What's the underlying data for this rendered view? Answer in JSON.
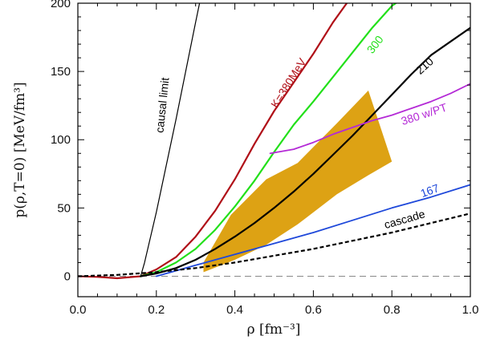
{
  "chart_data": {
    "type": "line",
    "xlabel": "ρ  [fm⁻³]",
    "ylabel": "p(ρ,T=0)  [MeV/fm³]",
    "xlim": [
      0,
      1.0
    ],
    "ylim": [
      -15,
      200
    ],
    "x_ticks": [
      0.0,
      0.2,
      0.4,
      0.6,
      0.8,
      1.0
    ],
    "x_tick_labels": [
      "0.0",
      "0.2",
      "0.4",
      "0.6",
      "0.8",
      "1.0"
    ],
    "y_ticks": [
      0,
      50,
      100,
      150,
      200
    ],
    "y_tick_labels": [
      "0",
      "50",
      "100",
      "150",
      "200"
    ],
    "grid": false,
    "band": {
      "color": "#dda214",
      "polygon": [
        [
          0.32,
          10
        ],
        [
          0.39,
          45
        ],
        [
          0.48,
          71
        ],
        [
          0.56,
          83
        ],
        [
          0.66,
          112
        ],
        [
          0.74,
          136
        ],
        [
          0.8,
          84
        ],
        [
          0.74,
          74
        ],
        [
          0.66,
          60
        ],
        [
          0.56,
          38
        ],
        [
          0.48,
          23
        ],
        [
          0.4,
          12
        ],
        [
          0.32,
          3
        ]
      ]
    },
    "series": [
      {
        "name": "causal limit",
        "color": "#000000",
        "width": 1.2,
        "dash": "",
        "x": [
          0.16,
          0.17,
          0.2,
          0.25,
          0.3,
          0.31
        ],
        "y": [
          0,
          10,
          47,
          115,
          186,
          200
        ]
      },
      {
        "name": "K=380MeV",
        "color": "#b01018",
        "width": 2.2,
        "dash": "",
        "x": [
          0.0,
          0.05,
          0.1,
          0.16,
          0.2,
          0.25,
          0.3,
          0.35,
          0.4,
          0.45,
          0.5,
          0.55,
          0.6,
          0.65,
          0.685
        ],
        "y": [
          0,
          -0.5,
          -1.5,
          0,
          5,
          14,
          29,
          48,
          71,
          97,
          121,
          142,
          163,
          186,
          200
        ]
      },
      {
        "name": "300",
        "color": "#22e01a",
        "width": 2.2,
        "dash": "",
        "x": [
          0.16,
          0.2,
          0.25,
          0.3,
          0.35,
          0.4,
          0.45,
          0.5,
          0.55,
          0.6,
          0.65,
          0.7,
          0.75,
          0.8,
          0.81
        ],
        "y": [
          0,
          3,
          10,
          20,
          34,
          51,
          70,
          91,
          111,
          128,
          146,
          164,
          182,
          198,
          200
        ]
      },
      {
        "name": "210",
        "color": "#000000",
        "width": 2.2,
        "dash": "",
        "x": [
          0.16,
          0.2,
          0.25,
          0.3,
          0.35,
          0.4,
          0.45,
          0.5,
          0.55,
          0.6,
          0.65,
          0.7,
          0.75,
          0.8,
          0.85,
          0.9,
          0.95,
          1.0
        ],
        "y": [
          0,
          2,
          6,
          12,
          20,
          29,
          39,
          50,
          62,
          75,
          89,
          103,
          118,
          133,
          148,
          162,
          172,
          182
        ]
      },
      {
        "name": "380 w/PT",
        "color": "#b42ad6",
        "width": 1.8,
        "dash": "",
        "x": [
          0.49,
          0.55,
          0.6,
          0.65,
          0.7,
          0.75,
          0.8,
          0.85,
          0.9,
          0.95,
          1.0
        ],
        "y": [
          90,
          93,
          98,
          104,
          109,
          114,
          118,
          123,
          128,
          134,
          141
        ]
      },
      {
        "name": "167",
        "color": "#1e48da",
        "width": 1.8,
        "dash": "",
        "x": [
          0.2,
          0.3,
          0.4,
          0.5,
          0.6,
          0.7,
          0.8,
          0.9,
          1.0
        ],
        "y": [
          0,
          8,
          16,
          24,
          32,
          41,
          50,
          58,
          67
        ]
      },
      {
        "name": "cascade",
        "color": "#000000",
        "width": 2.2,
        "dash": "5,3",
        "x": [
          0.0,
          0.1,
          0.2,
          0.3,
          0.4,
          0.5,
          0.6,
          0.7,
          0.8,
          0.9,
          1.0
        ],
        "y": [
          0,
          1,
          3,
          6,
          10,
          15,
          20,
          26,
          32,
          39,
          46
        ]
      }
    ],
    "zero_line": {
      "y": 0,
      "color": "#888888",
      "dash": "8,5"
    },
    "annotations": [
      {
        "text": "causal limit",
        "x": 0.225,
        "y": 125,
        "rotate": -84,
        "color": "#000000"
      },
      {
        "text": "K=380MeV",
        "x": 0.545,
        "y": 140,
        "rotate": -58,
        "color": "#b01018"
      },
      {
        "text": "300",
        "x": 0.765,
        "y": 168,
        "rotate": -52,
        "color": "#22e01a"
      },
      {
        "text": "210",
        "x": 0.89,
        "y": 152,
        "rotate": -42,
        "color": "#000000"
      },
      {
        "text": "380 w/PT",
        "x": 0.885,
        "y": 116,
        "rotate": -18,
        "color": "#b42ad6"
      },
      {
        "text": "167",
        "x": 0.9,
        "y": 60,
        "rotate": -20,
        "color": "#1e48da"
      },
      {
        "text": "cascade",
        "x": 0.835,
        "y": 39,
        "rotate": -16,
        "color": "#000000"
      }
    ]
  }
}
